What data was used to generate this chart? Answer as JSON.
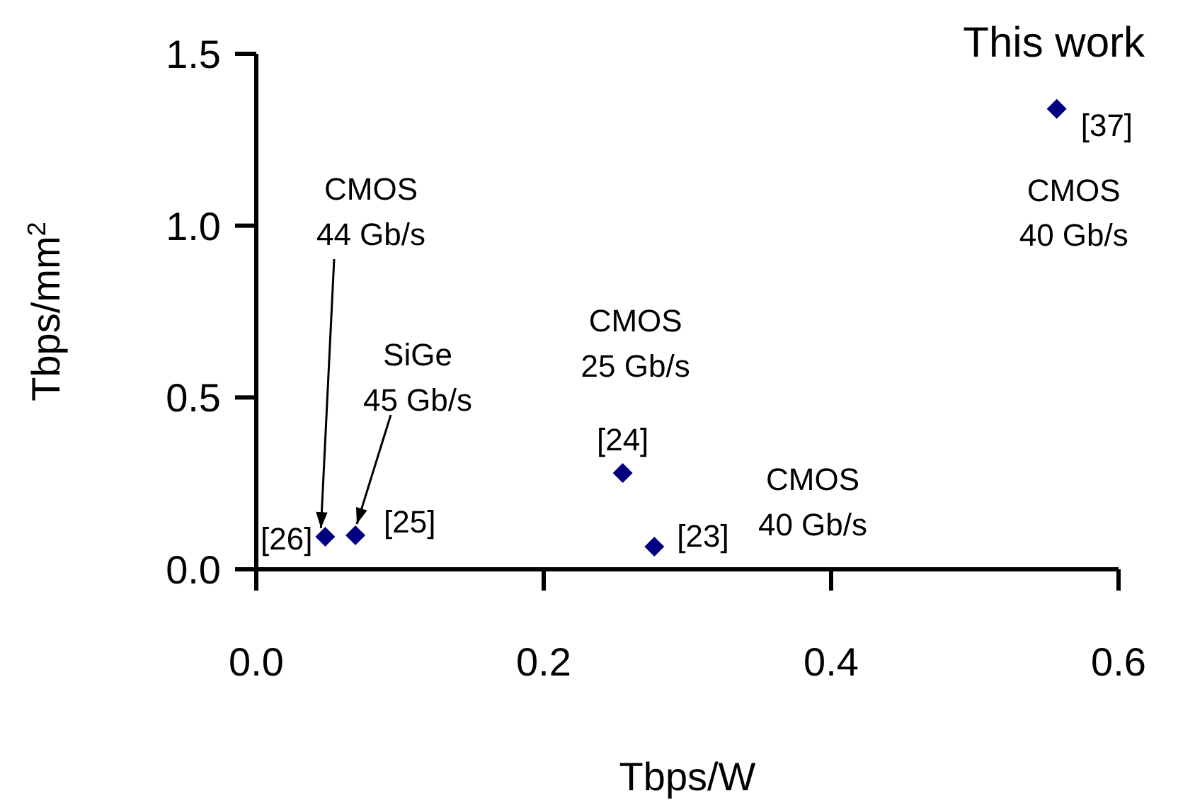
{
  "chart_data": {
    "type": "scatter",
    "xlabel": "Tbps/W",
    "ylabel": "Tbps/mm$^{2}$",
    "x": [
      0.048,
      0.069,
      0.255,
      0.277,
      0.557
    ],
    "series": [
      {
        "color": "#000080",
        "values": [
          0.095,
          0.099,
          0.28,
          0.066,
          1.34
        ]
      }
    ],
    "marker": "diamond",
    "xlim": [
      0,
      0.6
    ],
    "xticks": [
      {
        "value": 0,
        "label": "0.0"
      },
      0.2,
      0.4,
      0.6
    ],
    "ylim": [
      0,
      1.5
    ],
    "yticks": [
      {
        "value": 0,
        "label": "0.0"
      },
      0.5,
      {
        "value": 1,
        "label": "1.0"
      },
      1.5
    ],
    "grid": false,
    "annotations": [
      {
        "text": "This work",
        "x": 0.557,
        "y": 1.34
      },
      {
        "text": "[37]",
        "x": 0.557,
        "y": 1.34
      },
      {
        "text": "CMOS\n40 Gb/s",
        "x": 0.557,
        "y": 1.34
      },
      {
        "text": "CMOS\n25 Gb/s",
        "x": 0.255,
        "y": 0.28
      },
      {
        "text": "[24]",
        "x": 0.255,
        "y": 0.28
      },
      {
        "text": "[23]",
        "x": 0.277,
        "y": 0.066
      },
      "CMOS\n40 Gb/s",
      {
        "text": "[26]",
        "x": 0.048,
        "y": 0.095
      },
      {
        "text": "[25]",
        "x": 0.069,
        "y": 0.099
      },
      {
        "text": "CMOS\n44 Gb/s",
        "x": 0.045,
        "y": 0.12
      },
      {
        "text": "SiGe\n45 Gb/s",
        "x": 0.069,
        "y": 0.099
      }
    ]
  }
}
